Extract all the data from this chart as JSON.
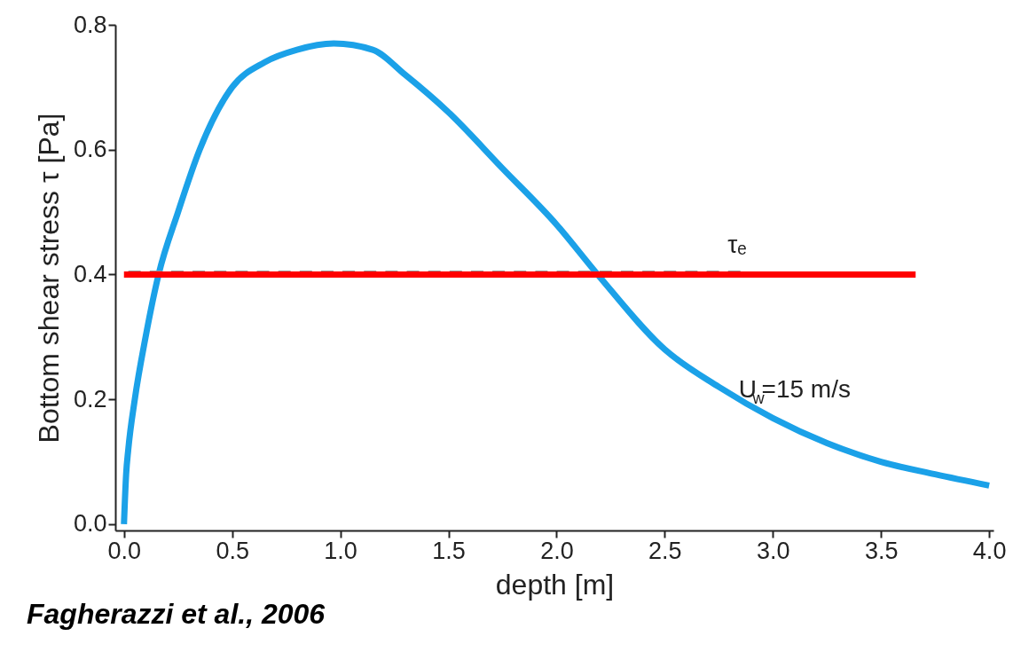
{
  "chart_data": {
    "type": "line",
    "xlabel": "depth [m]",
    "ylabel": "Bottom shear stress τ [Pa]",
    "xlim": [
      -0.04,
      4.02
    ],
    "ylim": [
      -0.01,
      0.8
    ],
    "xticks": [
      {
        "value": 0,
        "label": "0.0"
      },
      0.5,
      {
        "value": 1,
        "label": "1.0"
      },
      1.5,
      {
        "value": 2,
        "label": "2.0"
      },
      2.5,
      {
        "value": 3,
        "label": "3.0"
      },
      3.5,
      {
        "value": 4,
        "label": "4.0"
      }
    ],
    "yticks": [
      {
        "value": 0,
        "label": "0.0"
      },
      0.2,
      0.4,
      0.6,
      0.8
    ],
    "grid": false,
    "legend": false,
    "marker": "none",
    "series": [
      {
        "name": "U$_{w}$=15 m/s",
        "color": "#1ba1e8",
        "line_style": "solid",
        "x": [
          0,
          0.01,
          0.02,
          0.05,
          0.1,
          0.16,
          0.25,
          0.35,
          0.5,
          0.65,
          0.8,
          0.97,
          1.15,
          1.3,
          1.5,
          1.75,
          2.0,
          2.19,
          2.5,
          2.75,
          3.0,
          3.25,
          3.5,
          3.75,
          4.0
        ],
        "values": [
          0,
          0.08,
          0.12,
          0.2,
          0.3,
          0.4,
          0.5,
          0.6,
          0.7,
          0.74,
          0.76,
          0.77,
          0.76,
          0.72,
          0.66,
          0.57,
          0.48,
          0.4,
          0.28,
          0.22,
          0.17,
          0.13,
          0.1,
          0.08,
          0.062
        ]
      },
      {
        "color": "#999999",
        "line_style": "dashed",
        "x": [
          0.02,
          2.85
        ],
        "values": [
          0.405,
          0.405
        ]
      },
      {
        "name": "τₑ",
        "color": "#ff0000",
        "line_style": "solid",
        "x": [
          0,
          3.66
        ],
        "values": [
          0.4,
          0.4
        ]
      }
    ],
    "annotations": [
      "Fagherazzi et al., 2006"
    ]
  }
}
